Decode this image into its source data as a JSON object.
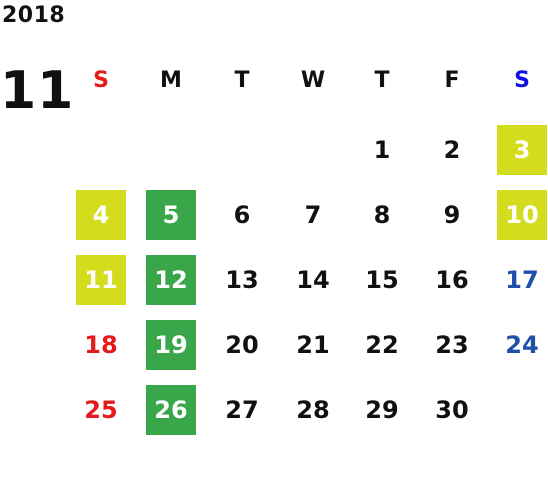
{
  "calendar": {
    "year": "2018",
    "month": "11",
    "weekdays": [
      {
        "label": "S",
        "color": "#e31b1b"
      },
      {
        "label": "M",
        "color": "#111111"
      },
      {
        "label": "T",
        "color": "#111111"
      },
      {
        "label": "W",
        "color": "#111111"
      },
      {
        "label": "T",
        "color": "#111111"
      },
      {
        "label": "F",
        "color": "#111111"
      },
      {
        "label": "S",
        "color": "#1010e0"
      }
    ],
    "colors": {
      "sunday_text": "#e31b1b",
      "saturday_text": "#1f4fa8",
      "weekday_text": "#111111",
      "holiday_yellow": "#d4dc1e",
      "holiday_green": "#3aa64a",
      "highlight_text": "#ffffff"
    },
    "weeks": [
      [
        {
          "day": ""
        },
        {
          "day": ""
        },
        {
          "day": ""
        },
        {
          "day": ""
        },
        {
          "day": "1"
        },
        {
          "day": "2"
        },
        {
          "day": "3",
          "highlight": "yellow"
        }
      ],
      [
        {
          "day": "4",
          "highlight": "yellow"
        },
        {
          "day": "5",
          "highlight": "green"
        },
        {
          "day": "6"
        },
        {
          "day": "7"
        },
        {
          "day": "8"
        },
        {
          "day": "9"
        },
        {
          "day": "10",
          "highlight": "yellow"
        }
      ],
      [
        {
          "day": "11",
          "highlight": "yellow"
        },
        {
          "day": "12",
          "highlight": "green"
        },
        {
          "day": "13"
        },
        {
          "day": "14"
        },
        {
          "day": "15"
        },
        {
          "day": "16"
        },
        {
          "day": "17"
        }
      ],
      [
        {
          "day": "18"
        },
        {
          "day": "19",
          "highlight": "green"
        },
        {
          "day": "20"
        },
        {
          "day": "21"
        },
        {
          "day": "22"
        },
        {
          "day": "23"
        },
        {
          "day": "24"
        }
      ],
      [
        {
          "day": "25"
        },
        {
          "day": "26",
          "highlight": "green"
        },
        {
          "day": "27"
        },
        {
          "day": "28"
        },
        {
          "day": "29"
        },
        {
          "day": "30"
        },
        {
          "day": ""
        }
      ]
    ]
  }
}
